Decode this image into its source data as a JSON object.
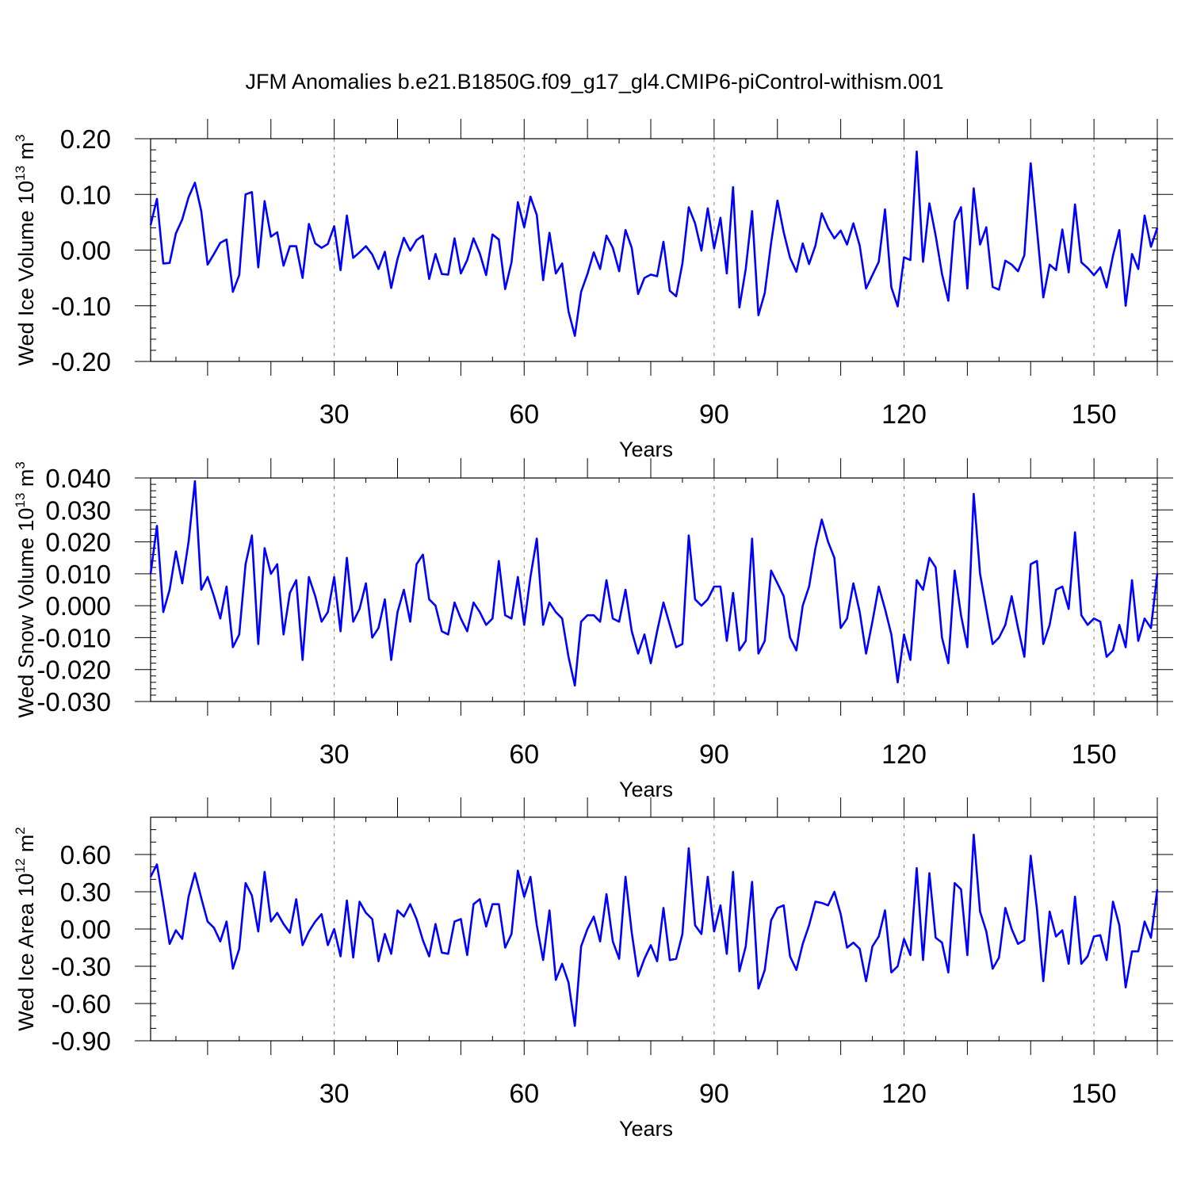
{
  "title": "JFM Anomalies b.e21.B1850G.f09_g17_gl4.CMIP6-piControl-withism.001",
  "colors": {
    "series": "#0000ff",
    "axis": "#000000",
    "grid": "#7f7f7f"
  },
  "chart_data": [
    {
      "type": "line",
      "title": "",
      "xlabel": "Years",
      "ylabel_main": "Wed Ice Volume 10",
      "ylabel_exp": "13",
      "ylabel_unit": " m",
      "ylabel_unit_exp": "3",
      "xlim": [
        1,
        160
      ],
      "ylim": [
        -0.2,
        0.2
      ],
      "x_ticks": [
        30,
        60,
        90,
        120,
        150
      ],
      "y_ticks": [
        -0.2,
        -0.1,
        0.0,
        0.1,
        0.2
      ],
      "y_tick_labels": [
        "-0.20",
        "-0.10",
        "0.00",
        "0.10",
        "0.20"
      ],
      "y_minor_step": 0.02,
      "grid": "dashed vertical at major x ticks",
      "series": [
        {
          "values": [
            0.045,
            0.092,
            -0.024,
            -0.023,
            0.03,
            0.055,
            0.095,
            0.121,
            0.07,
            -0.026,
            -0.007,
            0.013,
            0.019,
            -0.075,
            -0.045,
            0.1,
            0.104,
            -0.031,
            0.088,
            0.024,
            0.032,
            -0.028,
            0.007,
            0.007,
            -0.05,
            0.047,
            0.012,
            0.004,
            0.011,
            0.043,
            -0.036,
            0.062,
            -0.014,
            -0.004,
            0.007,
            -0.008,
            -0.034,
            -0.003,
            -0.068,
            -0.016,
            0.022,
            -0.001,
            0.018,
            0.026,
            -0.052,
            -0.007,
            -0.043,
            -0.044,
            0.021,
            -0.042,
            -0.018,
            0.021,
            -0.006,
            -0.045,
            0.028,
            0.019,
            -0.07,
            -0.022,
            0.086,
            0.041,
            0.096,
            0.063,
            -0.054,
            0.031,
            -0.042,
            -0.024,
            -0.11,
            -0.154,
            -0.075,
            -0.043,
            -0.004,
            -0.034,
            0.026,
            0.004,
            -0.038,
            0.036,
            0.004,
            -0.079,
            -0.05,
            -0.044,
            -0.047,
            0.015,
            -0.073,
            -0.083,
            -0.024,
            0.077,
            0.048,
            -0.001,
            0.075,
            0.003,
            0.058,
            -0.042,
            0.113,
            -0.103,
            -0.034,
            0.07,
            -0.117,
            -0.077,
            0.013,
            0.089,
            0.032,
            -0.014,
            -0.039,
            0.012,
            -0.025,
            0.008,
            0.066,
            0.04,
            0.021,
            0.035,
            0.01,
            0.048,
            0.008,
            -0.069,
            -0.045,
            -0.021,
            0.073,
            -0.067,
            -0.101,
            -0.013,
            -0.018,
            0.177,
            -0.021,
            0.084,
            0.026,
            -0.043,
            -0.091,
            0.052,
            0.077,
            -0.069,
            0.111,
            0.01,
            0.041,
            -0.066,
            -0.071,
            -0.019,
            -0.026,
            -0.038,
            -0.009,
            0.156,
            0.037,
            -0.085,
            -0.026,
            -0.036,
            0.037,
            -0.04,
            0.082,
            -0.022,
            -0.032,
            -0.045,
            -0.031,
            -0.067,
            -0.01,
            0.036,
            -0.1,
            -0.007,
            -0.034,
            0.062,
            0.006,
            0.04
          ]
        }
      ]
    },
    {
      "type": "line",
      "title": "",
      "xlabel": "Years",
      "ylabel_main": "Wed Snow Volume 10",
      "ylabel_exp": "13",
      "ylabel_unit": " m",
      "ylabel_unit_exp": "3",
      "xlim": [
        1,
        160
      ],
      "ylim": [
        -0.03,
        0.04
      ],
      "x_ticks": [
        30,
        60,
        90,
        120,
        150
      ],
      "y_ticks": [
        -0.03,
        -0.02,
        -0.01,
        0.0,
        0.01,
        0.02,
        0.03,
        0.04
      ],
      "y_tick_labels": [
        "-0.030",
        "-0.020",
        "-0.010",
        "0.000",
        "0.010",
        "0.020",
        "0.030",
        "0.040"
      ],
      "y_minor_step": 0.002,
      "grid": "dashed vertical at major x ticks",
      "series": [
        {
          "values": [
            0.01,
            0.025,
            -0.002,
            0.005,
            0.017,
            0.007,
            0.02,
            0.039,
            0.005,
            0.009,
            0.003,
            -0.004,
            0.006,
            -0.013,
            -0.009,
            0.013,
            0.022,
            -0.012,
            0.018,
            0.01,
            0.013,
            -0.009,
            0.004,
            0.008,
            -0.017,
            0.009,
            0.003,
            -0.005,
            -0.002,
            0.009,
            -0.008,
            0.015,
            -0.005,
            -0.001,
            0.007,
            -0.01,
            -0.007,
            0.002,
            -0.017,
            -0.002,
            0.005,
            -0.005,
            0.013,
            0.016,
            0.002,
            0.0,
            -0.008,
            -0.009,
            0.001,
            -0.004,
            -0.008,
            0.001,
            -0.002,
            -0.006,
            -0.004,
            0.014,
            -0.003,
            -0.004,
            0.009,
            -0.006,
            0.009,
            0.021,
            -0.006,
            0.001,
            -0.002,
            -0.004,
            -0.016,
            -0.025,
            -0.005,
            -0.003,
            -0.003,
            -0.005,
            0.008,
            -0.004,
            -0.005,
            0.005,
            -0.008,
            -0.015,
            -0.009,
            -0.018,
            -0.008,
            0.001,
            -0.006,
            -0.013,
            -0.012,
            0.022,
            0.002,
            0.0,
            0.002,
            0.006,
            0.006,
            -0.011,
            0.004,
            -0.014,
            -0.011,
            0.021,
            -0.015,
            -0.011,
            0.011,
            0.007,
            0.003,
            -0.01,
            -0.014,
            0.0,
            0.006,
            0.018,
            0.027,
            0.02,
            0.015,
            -0.007,
            -0.004,
            0.007,
            -0.002,
            -0.015,
            -0.005,
            0.006,
            -0.001,
            -0.009,
            -0.024,
            -0.009,
            -0.017,
            0.008,
            0.005,
            0.015,
            0.012,
            -0.01,
            -0.018,
            0.011,
            -0.003,
            -0.013,
            0.035,
            0.01,
            -0.001,
            -0.012,
            -0.01,
            -0.006,
            0.003,
            -0.007,
            -0.016,
            0.013,
            0.014,
            -0.012,
            -0.006,
            0.005,
            0.006,
            -0.001,
            0.023,
            -0.003,
            -0.006,
            -0.004,
            -0.005,
            -0.016,
            -0.014,
            -0.006,
            -0.013,
            0.008,
            -0.011,
            -0.004,
            -0.007,
            0.01
          ]
        }
      ]
    },
    {
      "type": "line",
      "title": "",
      "xlabel": "Years",
      "ylabel_main": "Wed Ice Area 10",
      "ylabel_exp": "12",
      "ylabel_unit": " m",
      "ylabel_unit_exp": "2",
      "xlim": [
        1,
        160
      ],
      "ylim": [
        -0.9,
        0.9
      ],
      "x_ticks": [
        30,
        60,
        90,
        120,
        150
      ],
      "y_ticks": [
        -0.9,
        -0.6,
        -0.3,
        0.0,
        0.3,
        0.6
      ],
      "y_tick_labels": [
        "-0.90",
        "-0.60",
        "-0.30",
        "0.00",
        "0.30",
        "0.60"
      ],
      "y_minor_step": 0.1,
      "grid": "dashed vertical at major x ticks",
      "series": [
        {
          "values": [
            0.42,
            0.52,
            0.21,
            -0.12,
            -0.01,
            -0.08,
            0.26,
            0.45,
            0.25,
            0.06,
            0.01,
            -0.1,
            0.06,
            -0.32,
            -0.16,
            0.37,
            0.27,
            -0.02,
            0.46,
            0.06,
            0.13,
            0.04,
            -0.03,
            0.24,
            -0.13,
            -0.02,
            0.06,
            0.12,
            -0.13,
            0.0,
            -0.22,
            0.23,
            -0.23,
            0.22,
            0.13,
            0.08,
            -0.26,
            -0.04,
            -0.2,
            0.15,
            0.1,
            0.2,
            0.08,
            -0.09,
            -0.22,
            0.04,
            -0.19,
            -0.2,
            0.06,
            0.08,
            -0.21,
            0.2,
            0.24,
            0.02,
            0.2,
            0.2,
            -0.15,
            -0.04,
            0.47,
            0.26,
            0.42,
            0.03,
            -0.25,
            0.15,
            -0.41,
            -0.28,
            -0.43,
            -0.78,
            -0.14,
            0.0,
            0.1,
            -0.1,
            0.28,
            -0.1,
            -0.24,
            0.42,
            -0.03,
            -0.38,
            -0.24,
            -0.13,
            -0.26,
            0.17,
            -0.25,
            -0.24,
            -0.04,
            0.65,
            0.03,
            -0.04,
            0.42,
            -0.02,
            0.19,
            -0.2,
            0.46,
            -0.34,
            -0.14,
            0.38,
            -0.48,
            -0.33,
            0.07,
            0.17,
            0.19,
            -0.22,
            -0.33,
            -0.12,
            0.03,
            0.22,
            0.21,
            0.19,
            0.3,
            0.12,
            -0.15,
            -0.11,
            -0.16,
            -0.42,
            -0.14,
            -0.06,
            0.15,
            -0.35,
            -0.3,
            -0.08,
            -0.21,
            0.49,
            -0.25,
            0.45,
            -0.07,
            -0.11,
            -0.35,
            0.37,
            0.32,
            -0.21,
            0.76,
            0.14,
            -0.02,
            -0.32,
            -0.23,
            0.17,
            0.0,
            -0.12,
            -0.09,
            0.59,
            0.16,
            -0.42,
            0.14,
            -0.06,
            -0.01,
            -0.28,
            0.26,
            -0.28,
            -0.22,
            -0.06,
            -0.05,
            -0.25,
            0.22,
            0.03,
            -0.47,
            -0.18,
            -0.18,
            0.06,
            -0.07,
            0.32
          ]
        }
      ]
    }
  ]
}
